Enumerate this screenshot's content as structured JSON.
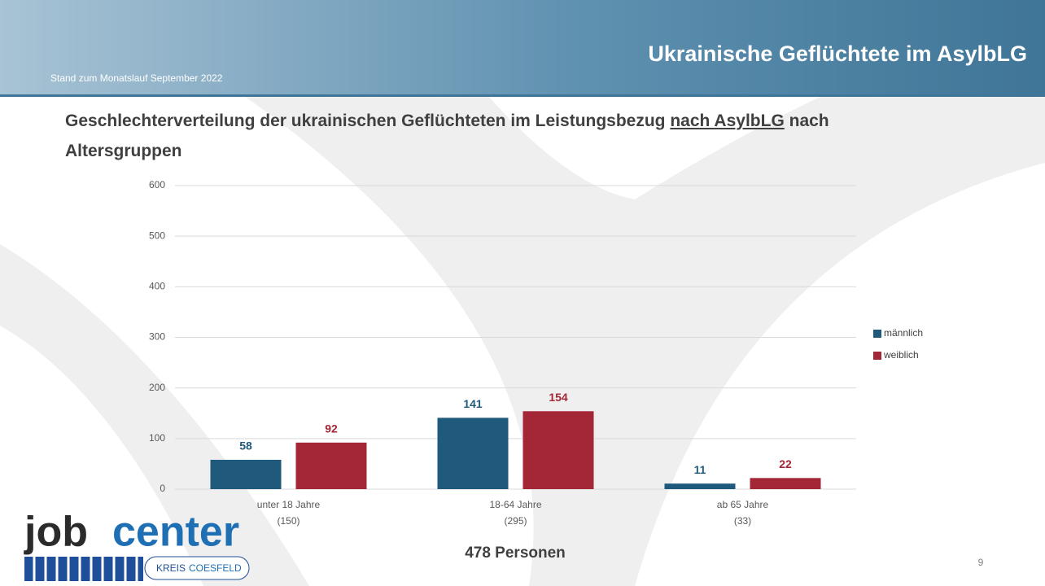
{
  "header": {
    "title": "Ukrainische Geflüchtete im AsylbLG",
    "note": "Stand zum Monatslauf September 2022"
  },
  "heading": {
    "parts": [
      "Geschlechterverteilung der ukrainischen Geflüchteten im Leistungsbezug ",
      "nach AsylbLG",
      " nach",
      "Altersgruppen"
    ]
  },
  "chart_data": {
    "type": "bar",
    "categories": [
      [
        "unter 18 Jahre",
        "(150)"
      ],
      [
        "18-64 Jahre",
        "(295)"
      ],
      [
        "ab 65 Jahre",
        "(33)"
      ]
    ],
    "series": [
      {
        "name": "männlich",
        "color": "#1f5a7d",
        "values": [
          58,
          141,
          11
        ]
      },
      {
        "name": "weiblich",
        "color": "#a32737",
        "values": [
          92,
          154,
          22
        ]
      }
    ],
    "ylim": [
      0,
      600
    ],
    "yticks": [
      0,
      100,
      200,
      300,
      400,
      500,
      600
    ],
    "grid": true,
    "legend": "right",
    "total": "478 Personen"
  },
  "logo": {
    "job": "job",
    "center": "center",
    "kreis": "KREIS",
    "coesfeld": "COESFELD"
  },
  "page_number": "9"
}
